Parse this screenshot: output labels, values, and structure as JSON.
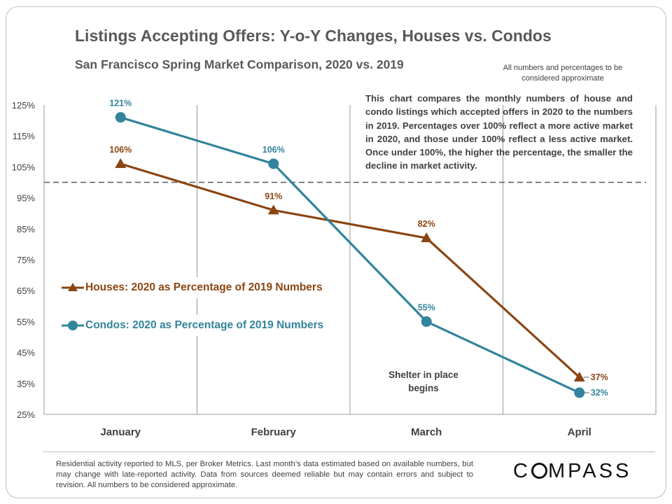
{
  "chart_data": {
    "type": "line",
    "title": "Listings Accepting Offers: Y-o-Y Changes, Houses vs. Condos",
    "subtitle": "San Francisco Spring Market Comparison,  2020 vs. 2019",
    "categories": [
      "January",
      "February",
      "March",
      "April"
    ],
    "ylim": [
      25,
      125
    ],
    "yticks": [
      "25%",
      "35%",
      "45%",
      "55%",
      "65%",
      "75%",
      "85%",
      "95%",
      "105%",
      "115%",
      "125%"
    ],
    "reference_line": 100,
    "grid": "vertical category dividers",
    "legend_position": "middle-left",
    "series": [
      {
        "name": "Houses: 2020 as Percentage of 2019 Numbers",
        "values": [
          106,
          91,
          82,
          37
        ],
        "labels": [
          "106%",
          "91%",
          "82%",
          "37%"
        ],
        "color": "#8b4513",
        "marker": "triangle"
      },
      {
        "name": "Condos: 2020 as Percentage of 2019 Numbers",
        "values": [
          121,
          106,
          55,
          32
        ],
        "labels": [
          "121%",
          "106%",
          "55%",
          "32%"
        ],
        "color": "#31849b",
        "marker": "circle"
      }
    ]
  },
  "approx_note": "All numbers and percentages to be considered approximate",
  "description": "This chart compares the monthly numbers of house and condo listings which accepted offers in 2020 to the numbers in 2019. Percentages over 100% reflect a more active market in 2020, and those under 100% reflect a less active market. Once under 100%, the higher the percentage, the smaller the decline in market activity.",
  "annotation": "Shelter in place begins",
  "footnote": "Residential activity reported to MLS, per Broker Metrics. Last month’s data estimated based on available numbers, but may change with late-reported activity. Data from sources deemed reliable but may contain errors and subject to revision. All numbers to be considered approximate.",
  "logo": {
    "pre": "C",
    "post": "MPASS"
  }
}
